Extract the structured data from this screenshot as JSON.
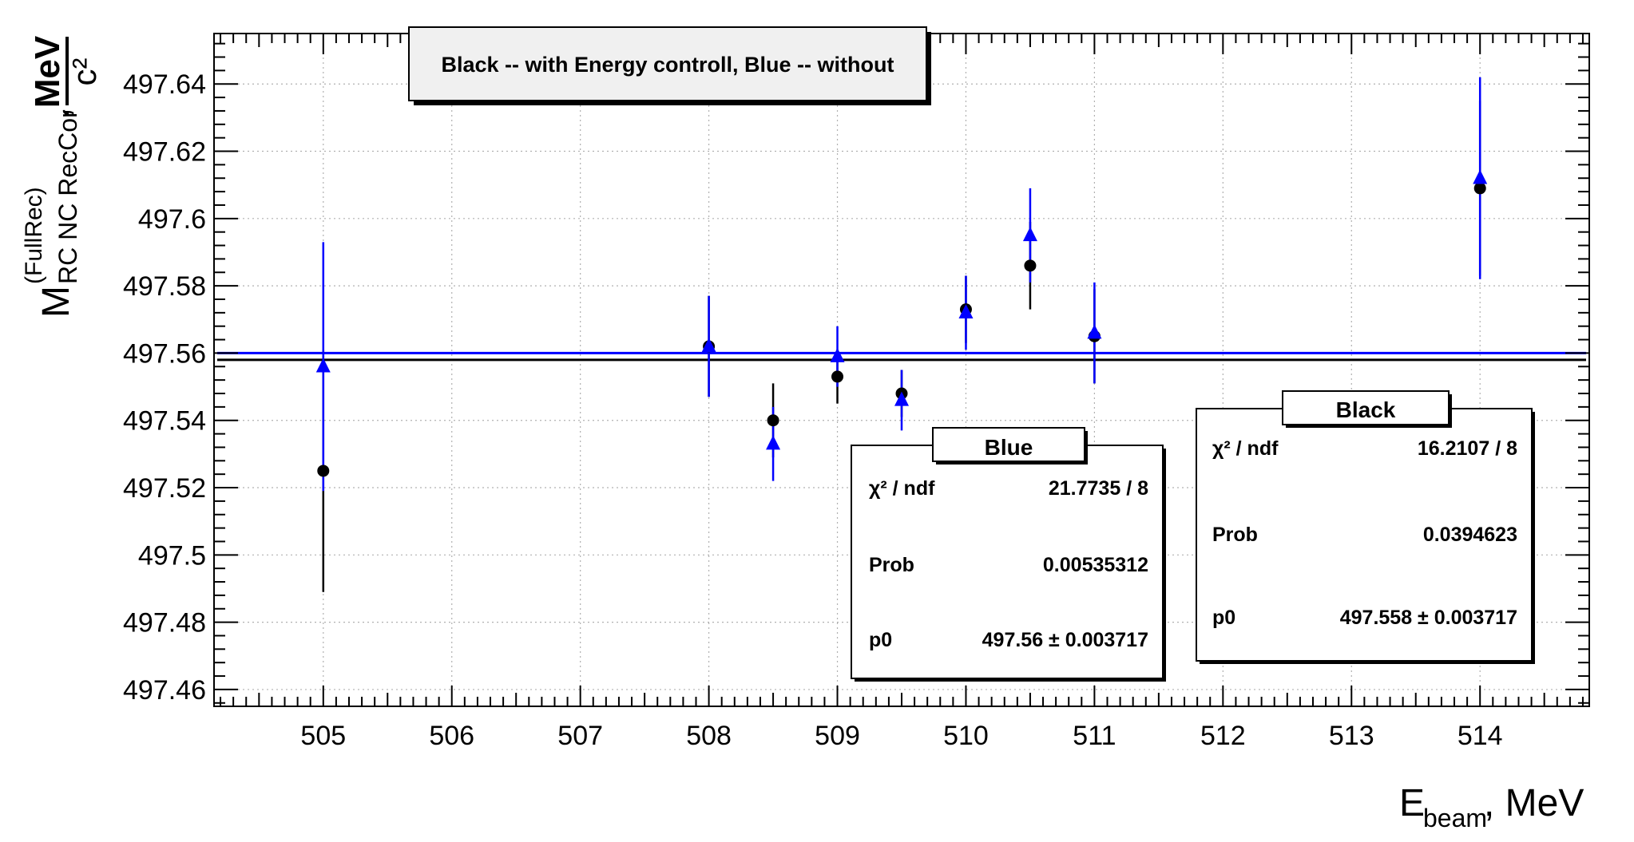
{
  "chart_data": {
    "type": "scatter",
    "title": "Black -- with Energy controll, Blue -- without",
    "xlabel_main": "E",
    "xlabel_sub": "beam",
    "xlabel_unit": ", MeV",
    "ylabel_main": "M",
    "ylabel_sup": "(FullRec)",
    "ylabel_sub": "RC NC RecCor",
    "ylabel_comma": ",",
    "ylabel_unit_num": "MeV",
    "ylabel_unit_den": "c²",
    "xlim": [
      504.15,
      514.85
    ],
    "ylim": [
      497.455,
      497.655
    ],
    "xticks": [
      505,
      506,
      507,
      508,
      509,
      510,
      511,
      512,
      513,
      514
    ],
    "xtick_labels": [
      "505",
      "506",
      "507",
      "508",
      "509",
      "510",
      "511",
      "512",
      "513",
      "514"
    ],
    "yticks": [
      497.46,
      497.48,
      497.5,
      497.52,
      497.54,
      497.56,
      497.58,
      497.6,
      497.62,
      497.64
    ],
    "ytick_labels": [
      "497.46",
      "497.48",
      "497.5",
      "497.52",
      "497.54",
      "497.56",
      "497.58",
      "497.6",
      "497.62",
      "497.64"
    ],
    "grid": true,
    "series": [
      {
        "name": "Black",
        "color": "#000000",
        "marker": "circle",
        "points": [
          {
            "x": 505,
            "y": 497.525,
            "err": 0.036
          },
          {
            "x": 508,
            "y": 497.562,
            "err": 0.015
          },
          {
            "x": 508.5,
            "y": 497.54,
            "err": 0.011
          },
          {
            "x": 509,
            "y": 497.553,
            "err": 0.008
          },
          {
            "x": 509.5,
            "y": 497.548,
            "err": 0.007
          },
          {
            "x": 510,
            "y": 497.573,
            "err": 0.01
          },
          {
            "x": 510.5,
            "y": 497.586,
            "err": 0.013
          },
          {
            "x": 511,
            "y": 497.565,
            "err": 0.014
          },
          {
            "x": 514,
            "y": 497.609,
            "err": 0.026
          }
        ],
        "fit_value": 497.558
      },
      {
        "name": "Blue",
        "color": "#0000ff",
        "marker": "triangle",
        "points": [
          {
            "x": 505,
            "y": 497.556,
            "err": 0.037
          },
          {
            "x": 508,
            "y": 497.562,
            "err": 0.015
          },
          {
            "x": 508.5,
            "y": 497.533,
            "err": 0.011
          },
          {
            "x": 509,
            "y": 497.559,
            "err": 0.009
          },
          {
            "x": 509.5,
            "y": 497.546,
            "err": 0.009
          },
          {
            "x": 510,
            "y": 497.572,
            "err": 0.011
          },
          {
            "x": 510.5,
            "y": 497.595,
            "err": 0.014
          },
          {
            "x": 511,
            "y": 497.566,
            "err": 0.015
          },
          {
            "x": 514,
            "y": 497.612,
            "err": 0.03
          }
        ],
        "fit_value": 497.56
      }
    ],
    "stat_boxes": [
      {
        "title": "Blue",
        "rows": [
          {
            "label": "χ² / ndf",
            "value": "21.7735 / 8"
          },
          {
            "label": "Prob",
            "value": "0.00535312"
          },
          {
            "label": "p0",
            "value": "497.56 ± 0.003717"
          }
        ]
      },
      {
        "title": "Black",
        "rows": [
          {
            "label": "χ² / ndf",
            "value": "16.2107 / 8"
          },
          {
            "label": "Prob",
            "value": "0.0394623"
          },
          {
            "label": "p0",
            "value": "497.558 ± 0.003717"
          }
        ]
      }
    ]
  }
}
